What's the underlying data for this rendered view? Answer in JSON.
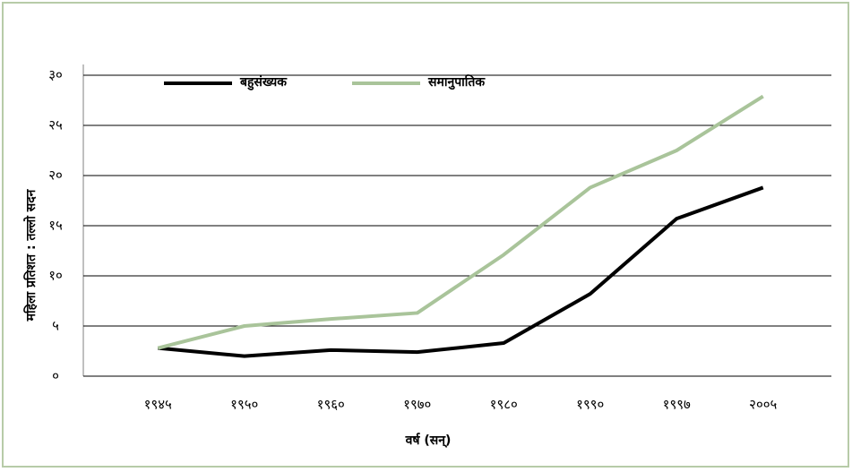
{
  "chart_data": {
    "type": "line",
    "xlabel": "वर्ष (सन्)",
    "ylabel": "महिला प्रतिशत : तल्लो सदन",
    "categories": [
      "१९४५",
      "१९५०",
      "१९६०",
      "१९७०",
      "१९८०",
      "१९९०",
      "१९९७",
      "२००५"
    ],
    "series": [
      {
        "name": "बहुसंख्यक",
        "color": "#000000",
        "values": [
          2.8,
          2.0,
          2.6,
          2.4,
          3.3,
          8.2,
          15.7,
          18.8
        ]
      },
      {
        "name": "समानुपातिक",
        "color": "#a9c49a",
        "values": [
          2.8,
          5.0,
          5.7,
          6.3,
          12.1,
          18.8,
          22.5,
          27.9
        ]
      }
    ],
    "ylim": [
      0,
      30
    ],
    "yticks": [
      {
        "value": 0,
        "label": "०"
      },
      {
        "value": 5,
        "label": "५"
      },
      {
        "value": 10,
        "label": "१०"
      },
      {
        "value": 15,
        "label": "१५"
      },
      {
        "value": 20,
        "label": "२०"
      },
      {
        "value": 25,
        "label": "२५"
      },
      {
        "value": 30,
        "label": "३०"
      }
    ],
    "grid": true,
    "legend": "top"
  }
}
